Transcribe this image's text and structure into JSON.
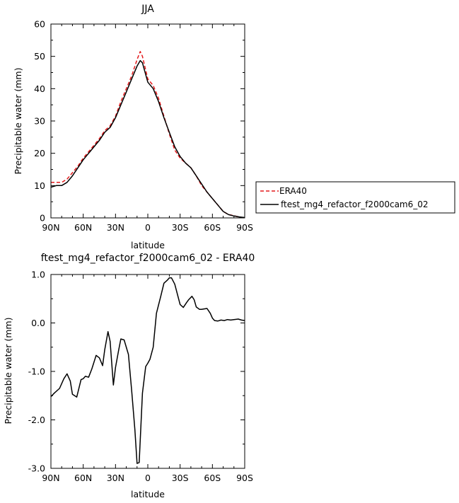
{
  "chart_data": [
    {
      "type": "line",
      "title": "JJA",
      "xlabel": "latitude",
      "ylabel": "Precipitable water (mm)",
      "xlim": [
        90,
        -90
      ],
      "ylim": [
        0,
        60
      ],
      "xticks": [
        90,
        60,
        30,
        0,
        -30,
        -60,
        -90
      ],
      "xticklabels": [
        "90N",
        "60N",
        "30N",
        "0",
        "30S",
        "60S",
        "90S"
      ],
      "yticks": [
        0,
        10,
        20,
        30,
        40,
        50,
        60
      ],
      "yticklabels": [
        "0",
        "10",
        "20",
        "30",
        "40",
        "50",
        "60"
      ],
      "legend_position": "right",
      "series": [
        {
          "name": "ERA40",
          "color": "#e41a1c",
          "dash": "dashed",
          "x": [
            90,
            80,
            75,
            70,
            65,
            60,
            55,
            50,
            45,
            40,
            35,
            30,
            25,
            20,
            15,
            10,
            7,
            5,
            0,
            -5,
            -10,
            -15,
            -20,
            -25,
            -30,
            -35,
            -40,
            -45,
            -50,
            -55,
            -60,
            -65,
            -70,
            -75,
            -80,
            -85,
            -90
          ],
          "values": [
            11,
            11,
            12,
            14,
            16,
            18.5,
            20.5,
            22.5,
            24.5,
            27,
            28.5,
            31.5,
            36,
            40,
            44,
            49,
            51.5,
            50,
            43,
            41,
            37,
            31.5,
            26,
            21,
            18.5,
            17,
            15.5,
            13,
            10,
            8,
            6,
            4,
            2,
            1,
            0.7,
            0.2,
            0.1
          ]
        },
        {
          "name": "ftest_mg4_refactor_f2000cam6_02",
          "color": "#000000",
          "dash": "solid",
          "x": [
            90,
            85,
            80,
            75,
            70,
            65,
            60,
            55,
            50,
            45,
            40,
            35,
            30,
            25,
            20,
            15,
            10,
            7,
            5,
            0,
            -5,
            -10,
            -15,
            -20,
            -25,
            -30,
            -35,
            -40,
            -45,
            -50,
            -55,
            -60,
            -65,
            -70,
            -75,
            -80,
            -85,
            -90
          ],
          "values": [
            9.5,
            10,
            10,
            11,
            13,
            15.5,
            18,
            20,
            22,
            24,
            26.5,
            28,
            31,
            35,
            39,
            43,
            47,
            48.7,
            48,
            42,
            40,
            36,
            31,
            26.5,
            22,
            19,
            17,
            15.5,
            13,
            10.5,
            8,
            6,
            4,
            2,
            1,
            0.6,
            0.3,
            0.1
          ]
        }
      ]
    },
    {
      "type": "line",
      "title": "ftest_mg4_refactor_f2000cam6_02 - ERA40",
      "xlabel": "latitude",
      "ylabel": "Precipitable water (mm)",
      "xlim": [
        90,
        -90
      ],
      "ylim": [
        -3.0,
        1.0
      ],
      "xticks": [
        90,
        60,
        30,
        0,
        -30,
        -60,
        -90
      ],
      "xticklabels": [
        "90N",
        "60N",
        "30N",
        "0",
        "30S",
        "60S",
        "90S"
      ],
      "yticks": [
        -3.0,
        -2.0,
        -1.0,
        0.0,
        1.0
      ],
      "yticklabels": [
        "-3.0",
        "-2.0",
        "-1.0",
        "0.0",
        "1.0"
      ],
      "series": [
        {
          "color": "#000000",
          "dash": "solid",
          "x": [
            90,
            87,
            82,
            78,
            75,
            72,
            70,
            66,
            62,
            60,
            58,
            55,
            52,
            48,
            45,
            42,
            40,
            37,
            35,
            32,
            30,
            27,
            25,
            22,
            18,
            15,
            12,
            10,
            8,
            5,
            2,
            0,
            -2,
            -5,
            -8,
            -12,
            -15,
            -18,
            -20,
            -22,
            -25,
            -28,
            -30,
            -33,
            -36,
            -38,
            -41,
            -43,
            -45,
            -48,
            -50,
            -55,
            -58,
            -60,
            -62,
            -65,
            -68,
            -71,
            -74,
            -77,
            -80,
            -84,
            -87,
            -90
          ],
          "values": [
            -1.52,
            -1.45,
            -1.35,
            -1.15,
            -1.05,
            -1.2,
            -1.47,
            -1.53,
            -1.17,
            -1.15,
            -1.1,
            -1.12,
            -0.95,
            -0.67,
            -0.72,
            -0.88,
            -0.55,
            -0.18,
            -0.38,
            -1.28,
            -0.92,
            -0.55,
            -0.33,
            -0.35,
            -0.65,
            -1.4,
            -2.2,
            -2.9,
            -2.88,
            -1.45,
            -0.9,
            -0.83,
            -0.75,
            -0.5,
            0.2,
            0.55,
            0.82,
            0.88,
            0.93,
            0.93,
            0.8,
            0.55,
            0.38,
            0.32,
            0.42,
            0.48,
            0.55,
            0.48,
            0.33,
            0.28,
            0.28,
            0.3,
            0.2,
            0.1,
            0.05,
            0.04,
            0.06,
            0.05,
            0.07,
            0.06,
            0.07,
            0.08,
            0.06,
            0.05
          ]
        }
      ]
    }
  ]
}
